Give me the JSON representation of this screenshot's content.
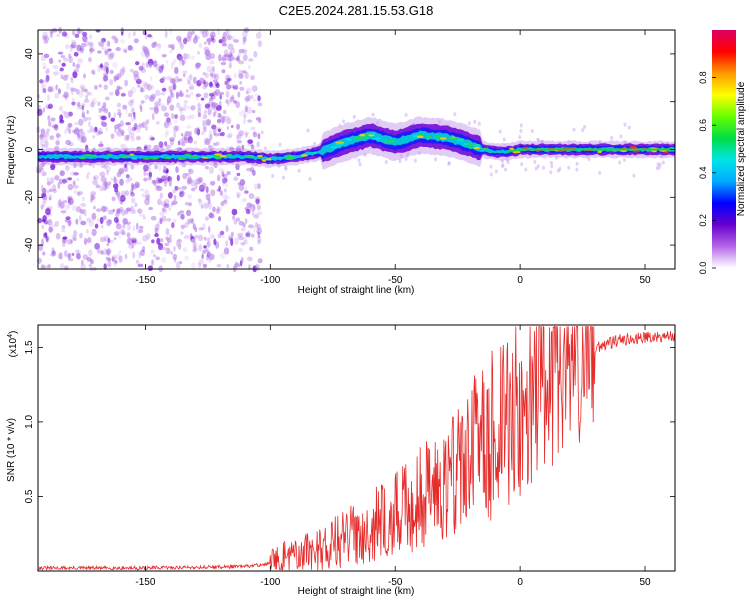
{
  "title": "C2E5.2024.281.15.53.G18",
  "chart_data": [
    {
      "type": "heatmap",
      "title": "C2E5.2024.281.15.53.G18",
      "xlabel": "Height of straight line (km)",
      "ylabel": "Frequency (Hz)",
      "xlim": [
        -193,
        62
      ],
      "ylim": [
        -50,
        50
      ],
      "xticks": [
        -150,
        -100,
        -50,
        0,
        50
      ],
      "yticks": [
        -40,
        -20,
        0,
        20,
        40
      ],
      "ridge_x": [
        -193,
        -150,
        -110,
        -100,
        -90,
        -80,
        -70,
        -60,
        -50,
        -40,
        -30,
        -20,
        -15,
        -10,
        -5,
        0,
        62
      ],
      "ridge_y": [
        -3,
        -3,
        -3,
        -4,
        -3,
        -1,
        3,
        6,
        3,
        6,
        5,
        2,
        0,
        -1,
        -1,
        0,
        0
      ],
      "noise_region_x": [
        -193,
        -104
      ],
      "colorbar": {
        "label": "Normalized spectral amplitude",
        "range": [
          0.0,
          1.0
        ],
        "ticks": [
          "0.0",
          "0.2",
          "0.4",
          "0.6",
          "0.8"
        ],
        "colors": [
          "#ffffff",
          "#b566e8",
          "#6600cc",
          "#0000ff",
          "#00aaff",
          "#00e5e5",
          "#00dd44",
          "#66ff00",
          "#ffff00",
          "#ff9900",
          "#ff0000",
          "#dd0066"
        ]
      }
    },
    {
      "type": "line",
      "xlabel": "Height of straight line (km)",
      "ylabel": "SNR (10 * v/v)",
      "multiplier_label": "(x10",
      "multiplier_exp": "4",
      "xlim": [
        -193,
        62
      ],
      "ylim": [
        0,
        1.65
      ],
      "xticks": [
        -150,
        -100,
        -50,
        0,
        50
      ],
      "yticks": [
        "0.5",
        "1.0",
        "1.5"
      ],
      "ytick_values": [
        0.5,
        1.0,
        1.5
      ],
      "line_color": "#e62b2b",
      "envelope_x": [
        -193,
        -150,
        -110,
        -100,
        -90,
        -80,
        -70,
        -60,
        -50,
        -40,
        -30,
        -20,
        -10,
        0,
        10,
        20,
        30,
        40,
        50,
        62
      ],
      "envelope_y": [
        0.02,
        0.02,
        0.03,
        0.05,
        0.1,
        0.15,
        0.22,
        0.3,
        0.37,
        0.5,
        0.62,
        0.78,
        0.93,
        1.08,
        1.25,
        1.4,
        1.5,
        1.55,
        1.57,
        1.58
      ]
    }
  ]
}
